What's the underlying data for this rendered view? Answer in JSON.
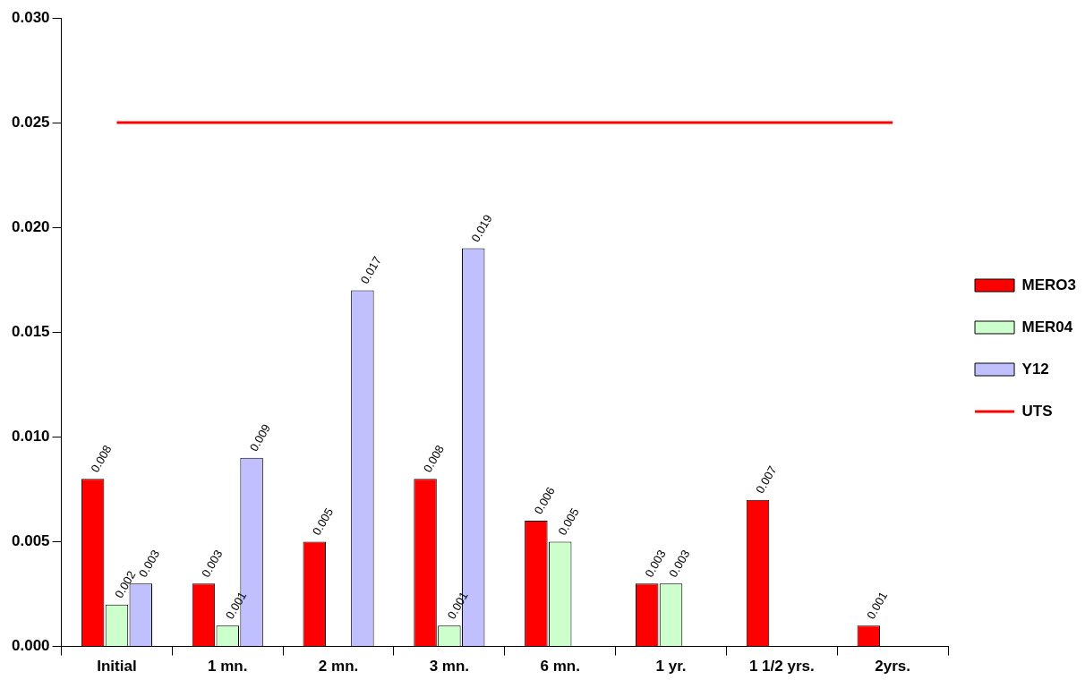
{
  "chart_data": {
    "type": "bar",
    "categories": [
      "Initial",
      "1 mn.",
      "2 mn.",
      "3 mn.",
      "6 mn.",
      "1 yr.",
      "1 1/2 yrs.",
      "2yrs."
    ],
    "series": [
      {
        "name": "MERO3",
        "color": "#ff0000",
        "values": [
          0.008,
          0.003,
          0.005,
          0.008,
          0.006,
          0.003,
          0.007,
          0.001
        ],
        "value_labels": [
          "0.008",
          "0.003",
          "0.005",
          "0.008",
          "0.006",
          "0.003",
          "0.007",
          "0.001"
        ]
      },
      {
        "name": "MER04",
        "color": "#ccffcc",
        "values": [
          0.002,
          0.001,
          null,
          0.001,
          0.005,
          0.003,
          null,
          null
        ],
        "value_labels": [
          "0.002",
          "0.001",
          null,
          "0.001",
          "0.005",
          "0.003",
          null,
          null
        ]
      },
      {
        "name": "Y12",
        "color": "#c0c0ff",
        "values": [
          0.003,
          0.009,
          0.017,
          0.019,
          null,
          null,
          null,
          null
        ],
        "value_labels": [
          "0.003",
          "0.009",
          "0.017",
          "0.019",
          null,
          null,
          null,
          null
        ]
      },
      {
        "name": "UTS",
        "type": "line",
        "color": "#ff0000",
        "marker": "none",
        "values": [
          0.025,
          0.025,
          0.025,
          0.025,
          0.025,
          0.025,
          0.025,
          0.025
        ]
      }
    ],
    "ylim": [
      0,
      0.03
    ],
    "yticks": [
      {
        "value": 0,
        "label": "0.000"
      },
      {
        "value": 0.005,
        "label": "0.005"
      },
      {
        "value": 0.01,
        "label": "0.010"
      },
      {
        "value": 0.015,
        "label": "0.015"
      },
      {
        "value": 0.02,
        "label": "0.020"
      },
      {
        "value": 0.025,
        "label": "0.025"
      },
      {
        "value": 0.03,
        "label": "0.030"
      }
    ],
    "grid": false,
    "legend": "right"
  }
}
